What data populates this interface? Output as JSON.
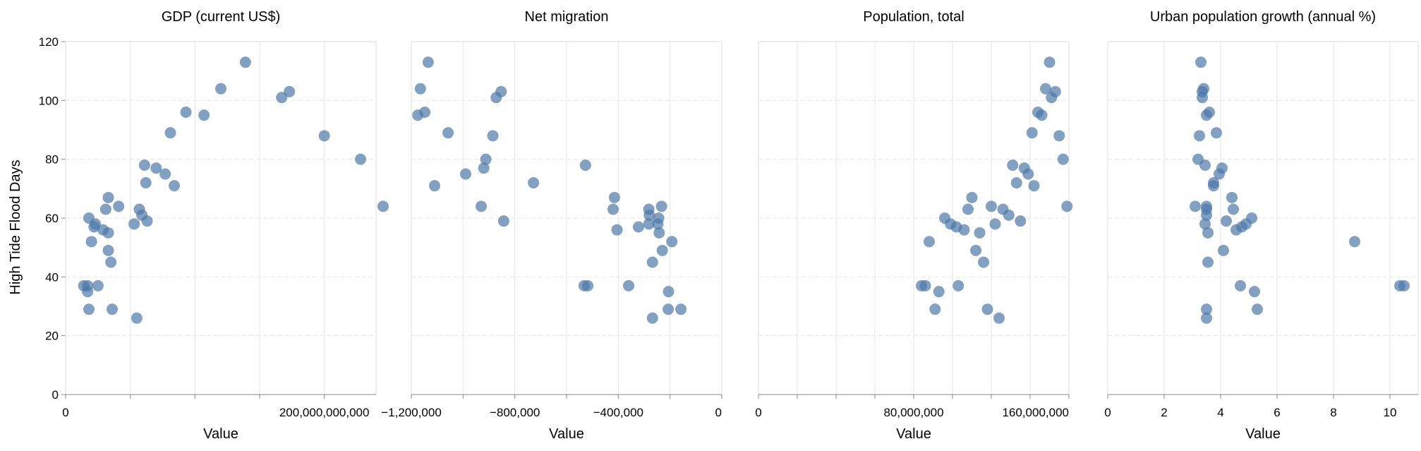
{
  "chart_data": {
    "type": "scatter",
    "ylabel": "High Tide Flood Days",
    "y_ticks": [
      "0",
      "20",
      "40",
      "60",
      "80",
      "100",
      "120"
    ],
    "ylim": [
      0,
      120
    ],
    "grid": true,
    "legend": "none",
    "colors": {
      "point": "#4c78a8",
      "grid": "#e6e6e6",
      "frame": "#dddddd",
      "axis": "#888888"
    },
    "panels": [
      {
        "title": "GDP (current US$)",
        "xlabel": "Value",
        "xlim": [
          0,
          240000000000
        ],
        "x_ticks": [
          {
            "value": 0,
            "label": "0"
          },
          {
            "value": 200000000000,
            "label": "200,000,000,000"
          }
        ],
        "x_minor_ticks": [
          50000000000,
          100000000000,
          150000000000
        ],
        "points": [
          {
            "x": 14000000000,
            "y": 37
          },
          {
            "x": 17000000000,
            "y": 35
          },
          {
            "x": 17000000000,
            "y": 37
          },
          {
            "x": 18000000000,
            "y": 29
          },
          {
            "x": 18000000000,
            "y": 60
          },
          {
            "x": 20000000000,
            "y": 52
          },
          {
            "x": 22000000000,
            "y": 57
          },
          {
            "x": 23000000000,
            "y": 58
          },
          {
            "x": 25000000000,
            "y": 37
          },
          {
            "x": 29000000000,
            "y": 56
          },
          {
            "x": 31000000000,
            "y": 63
          },
          {
            "x": 33000000000,
            "y": 67
          },
          {
            "x": 33000000000,
            "y": 49
          },
          {
            "x": 33000000000,
            "y": 55
          },
          {
            "x": 35000000000,
            "y": 45
          },
          {
            "x": 36000000000,
            "y": 29
          },
          {
            "x": 41000000000,
            "y": 64
          },
          {
            "x": 53000000000,
            "y": 58
          },
          {
            "x": 55000000000,
            "y": 26
          },
          {
            "x": 57000000000,
            "y": 63
          },
          {
            "x": 59000000000,
            "y": 61
          },
          {
            "x": 61000000000,
            "y": 78
          },
          {
            "x": 62000000000,
            "y": 72
          },
          {
            "x": 63000000000,
            "y": 59
          },
          {
            "x": 70000000000,
            "y": 77
          },
          {
            "x": 77000000000,
            "y": 75
          },
          {
            "x": 81000000000,
            "y": 89
          },
          {
            "x": 84000000000,
            "y": 71
          },
          {
            "x": 93000000000,
            "y": 96
          },
          {
            "x": 107000000000,
            "y": 95
          },
          {
            "x": 120000000000,
            "y": 104
          },
          {
            "x": 139000000000,
            "y": 113
          },
          {
            "x": 167000000000,
            "y": 101
          },
          {
            "x": 173000000000,
            "y": 103
          },
          {
            "x": 200000000000,
            "y": 88
          },
          {
            "x": 228000000000,
            "y": 80
          },
          {
            "x": 252000000000,
            "y": 64
          }
        ]
      },
      {
        "title": "Net migration",
        "xlabel": "Value",
        "xlim": [
          -1200000,
          0
        ],
        "x_ticks": [
          {
            "value": -1200000,
            "label": "−1,200,000"
          },
          {
            "value": -800000,
            "label": "−800,000"
          },
          {
            "value": -400000,
            "label": "−400,000"
          },
          {
            "value": 0,
            "label": "0"
          }
        ],
        "x_minor_ticks": [
          -1000000,
          -600000,
          -200000
        ],
        "points": [
          {
            "x": -1175000,
            "y": 95
          },
          {
            "x": -1165000,
            "y": 104
          },
          {
            "x": -1148000,
            "y": 96
          },
          {
            "x": -1135000,
            "y": 113
          },
          {
            "x": -1110000,
            "y": 71
          },
          {
            "x": -1058000,
            "y": 89
          },
          {
            "x": -990000,
            "y": 75
          },
          {
            "x": -930000,
            "y": 64
          },
          {
            "x": -920000,
            "y": 77
          },
          {
            "x": -912000,
            "y": 80
          },
          {
            "x": -885000,
            "y": 88
          },
          {
            "x": -872000,
            "y": 101
          },
          {
            "x": -853000,
            "y": 103
          },
          {
            "x": -843000,
            "y": 59
          },
          {
            "x": -728000,
            "y": 72
          },
          {
            "x": -527000,
            "y": 78
          },
          {
            "x": -532000,
            "y": 37
          },
          {
            "x": -518000,
            "y": 37
          },
          {
            "x": -420000,
            "y": 63
          },
          {
            "x": -415000,
            "y": 67
          },
          {
            "x": -405000,
            "y": 56
          },
          {
            "x": -360000,
            "y": 37
          },
          {
            "x": -322000,
            "y": 57
          },
          {
            "x": -282000,
            "y": 63
          },
          {
            "x": -280000,
            "y": 61
          },
          {
            "x": -282000,
            "y": 58
          },
          {
            "x": -268000,
            "y": 45
          },
          {
            "x": -268000,
            "y": 26
          },
          {
            "x": -247000,
            "y": 58
          },
          {
            "x": -244000,
            "y": 60
          },
          {
            "x": -242000,
            "y": 55
          },
          {
            "x": -233000,
            "y": 64
          },
          {
            "x": -230000,
            "y": 49
          },
          {
            "x": -206000,
            "y": 35
          },
          {
            "x": -207000,
            "y": 29
          },
          {
            "x": -193000,
            "y": 52
          },
          {
            "x": -158000,
            "y": 29
          }
        ]
      },
      {
        "title": "Population, total",
        "xlabel": "Value",
        "xlim": [
          0,
          160000000
        ],
        "x_ticks": [
          {
            "value": 0,
            "label": "0"
          },
          {
            "value": 80000000,
            "label": "80,000,000"
          },
          {
            "value": 160000000,
            "label": "160,000,000"
          }
        ],
        "x_minor_ticks": [
          20000000,
          40000000,
          60000000,
          100000000,
          120000000,
          140000000
        ],
        "points": [
          {
            "x": 84000000,
            "y": 37
          },
          {
            "x": 86000000,
            "y": 37
          },
          {
            "x": 88000000,
            "y": 52
          },
          {
            "x": 91000000,
            "y": 29
          },
          {
            "x": 93000000,
            "y": 35
          },
          {
            "x": 96000000,
            "y": 60
          },
          {
            "x": 99000000,
            "y": 58
          },
          {
            "x": 102000000,
            "y": 57
          },
          {
            "x": 103000000,
            "y": 37
          },
          {
            "x": 106000000,
            "y": 56
          },
          {
            "x": 108000000,
            "y": 63
          },
          {
            "x": 110000000,
            "y": 67
          },
          {
            "x": 112000000,
            "y": 49
          },
          {
            "x": 114000000,
            "y": 55
          },
          {
            "x": 116000000,
            "y": 45
          },
          {
            "x": 118000000,
            "y": 29
          },
          {
            "x": 120000000,
            "y": 64
          },
          {
            "x": 122000000,
            "y": 58
          },
          {
            "x": 124000000,
            "y": 26
          },
          {
            "x": 126000000,
            "y": 63
          },
          {
            "x": 129000000,
            "y": 61
          },
          {
            "x": 131000000,
            "y": 78
          },
          {
            "x": 133000000,
            "y": 72
          },
          {
            "x": 135000000,
            "y": 59
          },
          {
            "x": 137000000,
            "y": 77
          },
          {
            "x": 139000000,
            "y": 75
          },
          {
            "x": 141000000,
            "y": 89
          },
          {
            "x": 142000000,
            "y": 71
          },
          {
            "x": 144000000,
            "y": 96
          },
          {
            "x": 146000000,
            "y": 95
          },
          {
            "x": 148000000,
            "y": 104
          },
          {
            "x": 150000000,
            "y": 113
          },
          {
            "x": 151000000,
            "y": 101
          },
          {
            "x": 153000000,
            "y": 103
          },
          {
            "x": 155000000,
            "y": 88
          },
          {
            "x": 157000000,
            "y": 80
          },
          {
            "x": 159000000,
            "y": 64
          }
        ]
      },
      {
        "title": "Urban population growth (annual %)",
        "xlabel": "Value",
        "xlim": [
          0,
          11
        ],
        "x_ticks": [
          {
            "value": 0,
            "label": "0"
          },
          {
            "value": 2,
            "label": "2"
          },
          {
            "value": 4,
            "label": "4"
          },
          {
            "value": 6,
            "label": "6"
          },
          {
            "value": 8,
            "label": "8"
          },
          {
            "value": 10,
            "label": "10"
          }
        ],
        "x_minor_ticks": [],
        "points": [
          {
            "x": 3.3,
            "y": 113
          },
          {
            "x": 3.4,
            "y": 104
          },
          {
            "x": 3.35,
            "y": 103
          },
          {
            "x": 3.35,
            "y": 101
          },
          {
            "x": 3.5,
            "y": 95
          },
          {
            "x": 3.6,
            "y": 96
          },
          {
            "x": 3.85,
            "y": 89
          },
          {
            "x": 3.25,
            "y": 88
          },
          {
            "x": 3.2,
            "y": 80
          },
          {
            "x": 3.45,
            "y": 78
          },
          {
            "x": 4.05,
            "y": 77
          },
          {
            "x": 3.95,
            "y": 75
          },
          {
            "x": 3.75,
            "y": 72
          },
          {
            "x": 3.75,
            "y": 71
          },
          {
            "x": 4.4,
            "y": 67
          },
          {
            "x": 3.1,
            "y": 64
          },
          {
            "x": 3.5,
            "y": 64
          },
          {
            "x": 4.45,
            "y": 63
          },
          {
            "x": 3.5,
            "y": 63
          },
          {
            "x": 3.5,
            "y": 61
          },
          {
            "x": 5.1,
            "y": 60
          },
          {
            "x": 4.2,
            "y": 59
          },
          {
            "x": 3.45,
            "y": 58
          },
          {
            "x": 4.9,
            "y": 58
          },
          {
            "x": 4.75,
            "y": 57
          },
          {
            "x": 4.55,
            "y": 56
          },
          {
            "x": 3.55,
            "y": 55
          },
          {
            "x": 4.1,
            "y": 49
          },
          {
            "x": 3.55,
            "y": 45
          },
          {
            "x": 4.7,
            "y": 37
          },
          {
            "x": 5.2,
            "y": 35
          },
          {
            "x": 3.5,
            "y": 29
          },
          {
            "x": 5.3,
            "y": 29
          },
          {
            "x": 3.5,
            "y": 26
          },
          {
            "x": 8.75,
            "y": 52
          },
          {
            "x": 10.35,
            "y": 37
          },
          {
            "x": 10.5,
            "y": 37
          }
        ]
      }
    ]
  }
}
